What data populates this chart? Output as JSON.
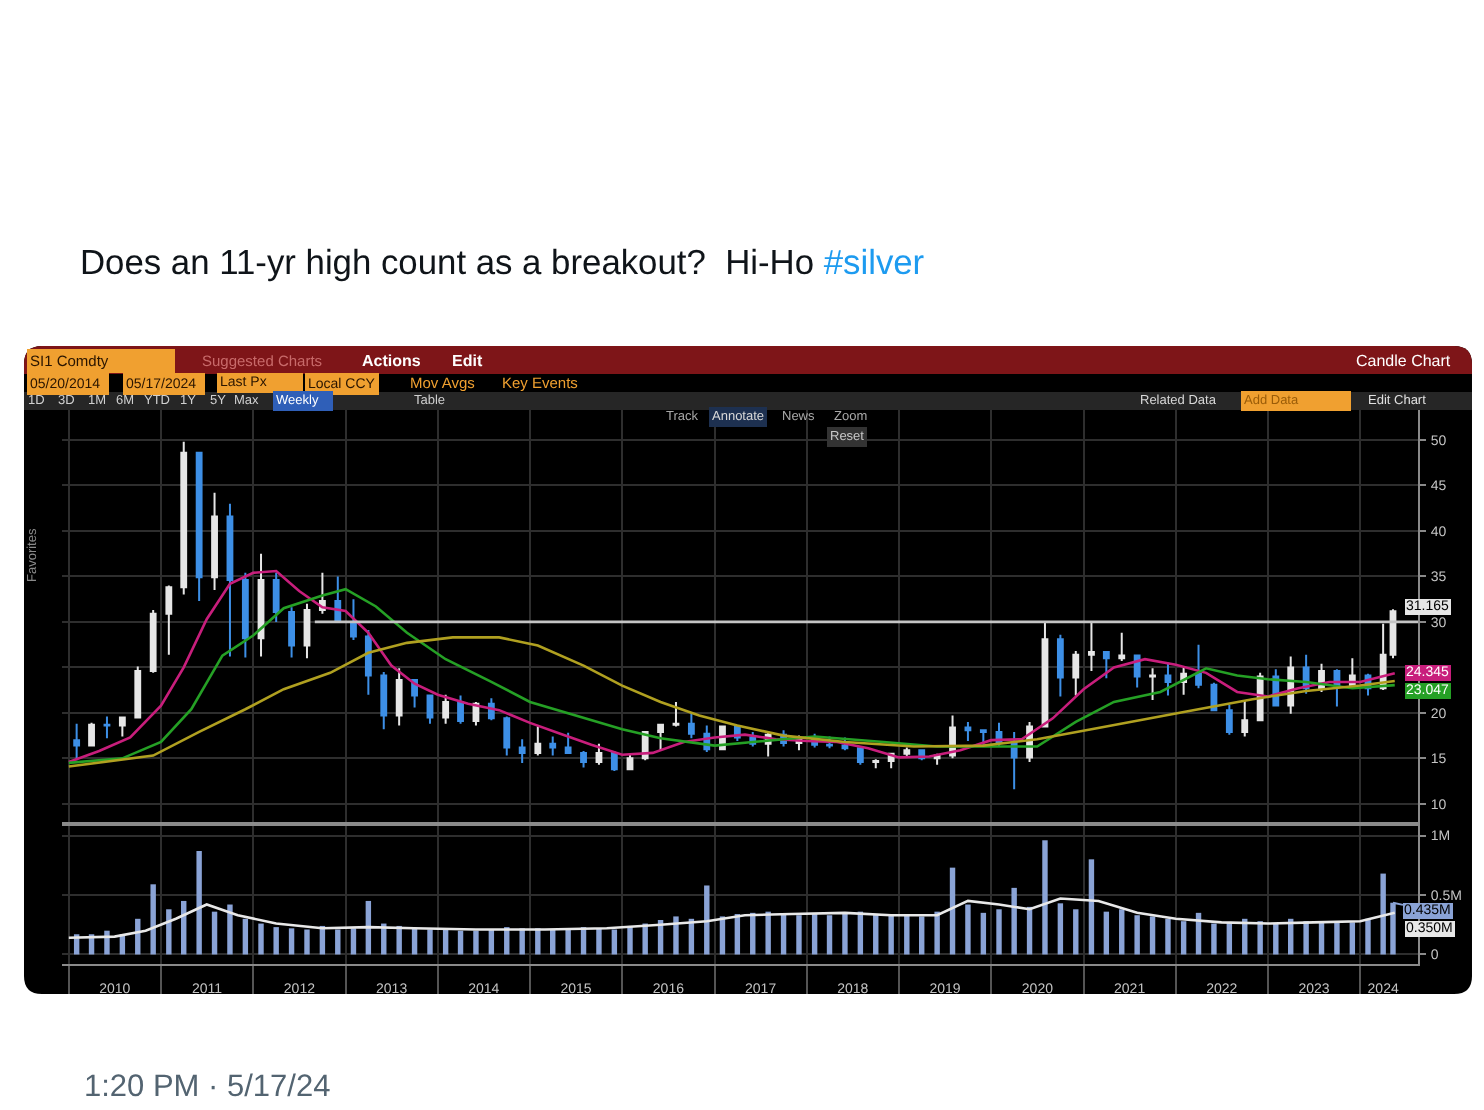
{
  "chart_data": [
    {
      "type": "candlestick",
      "title": "Does an 11-yr high count as a breakout?  Hi-Ho #silver",
      "annotations": [
        "SI1 Comdty",
        "Suggested Charts",
        "Actions",
        "Edit",
        "Candle Chart",
        "05/20/2014",
        "05/17/2024",
        "Last Px",
        "Local CCY",
        "Mov Avgs",
        "Key Events",
        "1D",
        "3D",
        "1M",
        "6M",
        "YTD",
        "1Y",
        "5Y",
        "Max",
        "Weekly",
        "Table",
        "Track",
        "Annotate",
        "News",
        "Zoom",
        "Reset",
        "Related Data",
        "Add Data",
        "Edit Chart",
        "Favorites"
      ],
      "x": [
        "2010-02",
        "2010-04",
        "2010-06",
        "2010-08",
        "2010-10",
        "2010-12",
        "2011-02",
        "2011-04",
        "2011-06",
        "2011-08",
        "2011-10",
        "2011-12",
        "2012-02",
        "2012-04",
        "2012-06",
        "2012-08",
        "2012-10",
        "2012-12",
        "2013-02",
        "2013-04",
        "2013-06",
        "2013-08",
        "2013-10",
        "2013-12",
        "2014-02",
        "2014-04",
        "2014-06",
        "2014-08",
        "2014-10",
        "2014-12",
        "2015-02",
        "2015-04",
        "2015-06",
        "2015-08",
        "2015-10",
        "2015-12",
        "2016-02",
        "2016-04",
        "2016-06",
        "2016-08",
        "2016-10",
        "2016-12",
        "2017-02",
        "2017-04",
        "2017-06",
        "2017-08",
        "2017-10",
        "2017-12",
        "2018-02",
        "2018-04",
        "2018-06",
        "2018-08",
        "2018-10",
        "2018-12",
        "2019-02",
        "2019-04",
        "2019-06",
        "2019-08",
        "2019-10",
        "2019-12",
        "2020-02",
        "2020-04",
        "2020-06",
        "2020-08",
        "2020-10",
        "2020-12",
        "2021-02",
        "2021-04",
        "2021-06",
        "2021-08",
        "2021-10",
        "2021-12",
        "2022-02",
        "2022-04",
        "2022-06",
        "2022-08",
        "2022-10",
        "2022-12",
        "2023-02",
        "2023-04",
        "2023-06",
        "2023-08",
        "2023-10",
        "2023-12",
        "2024-02",
        "2024-04",
        "2024-05-10"
      ],
      "series": [
        {
          "ohlc": [
            [
              17.0,
              18.8,
              14.8,
              16.4
            ],
            [
              16.4,
              18.9,
              16.3,
              18.7
            ],
            [
              18.7,
              19.6,
              17.2,
              18.6
            ],
            [
              18.6,
              19.5,
              17.4,
              19.5
            ],
            [
              19.5,
              25.1,
              19.4,
              24.6
            ],
            [
              24.6,
              31.3,
              24.4,
              30.9
            ],
            [
              30.9,
              34.0,
              26.4,
              33.8
            ],
            [
              33.8,
              49.8,
              33.0,
              48.6
            ],
            [
              48.6,
              48.7,
              32.3,
              34.9
            ],
            [
              34.9,
              44.2,
              33.5,
              41.6
            ],
            [
              41.6,
              43.0,
              26.2,
              34.6
            ],
            [
              34.6,
              35.4,
              26.1,
              28.2
            ],
            [
              28.2,
              37.5,
              26.2,
              34.6
            ],
            [
              34.6,
              35.4,
              30.0,
              31.1
            ],
            [
              31.1,
              31.6,
              26.1,
              27.4
            ],
            [
              27.4,
              32.0,
              26.0,
              31.3
            ],
            [
              31.3,
              35.4,
              30.9,
              32.3
            ],
            [
              32.3,
              35.0,
              29.9,
              30.0
            ],
            [
              30.0,
              32.5,
              28.0,
              28.4
            ],
            [
              28.4,
              29.1,
              22.0,
              24.1
            ],
            [
              24.1,
              24.5,
              18.2,
              19.7
            ],
            [
              19.7,
              24.9,
              18.6,
              23.6
            ],
            [
              23.6,
              23.7,
              20.6,
              21.9
            ],
            [
              21.9,
              22.0,
              18.8,
              19.5
            ],
            [
              19.5,
              22.0,
              18.8,
              21.2
            ],
            [
              21.2,
              21.9,
              18.8,
              19.1
            ],
            [
              19.1,
              21.2,
              18.6,
              21.0
            ],
            [
              21.0,
              21.6,
              19.2,
              19.4
            ],
            [
              19.4,
              19.6,
              15.3,
              16.2
            ],
            [
              16.2,
              17.1,
              14.5,
              15.6
            ],
            [
              15.6,
              18.5,
              15.3,
              16.6
            ],
            [
              16.6,
              17.4,
              15.3,
              16.2
            ],
            [
              16.2,
              17.8,
              15.6,
              15.6
            ],
            [
              15.6,
              15.8,
              14.0,
              14.6
            ],
            [
              14.6,
              16.6,
              14.3,
              15.6
            ],
            [
              15.6,
              15.8,
              13.6,
              13.8
            ],
            [
              13.8,
              15.5,
              13.7,
              15.0
            ],
            [
              15.0,
              17.9,
              14.8,
              17.9
            ],
            [
              17.9,
              18.8,
              15.8,
              18.7
            ],
            [
              18.7,
              21.2,
              18.5,
              18.8
            ],
            [
              18.8,
              20.0,
              17.2,
              17.7
            ],
            [
              17.7,
              18.6,
              15.7,
              16.0
            ],
            [
              16.0,
              18.6,
              15.9,
              18.5
            ],
            [
              18.5,
              18.6,
              16.9,
              17.3
            ],
            [
              17.3,
              17.9,
              16.3,
              16.6
            ],
            [
              16.6,
              18.0,
              15.2,
              17.6
            ],
            [
              17.6,
              18.1,
              16.3,
              16.7
            ],
            [
              16.7,
              17.5,
              15.9,
              17.1
            ],
            [
              17.1,
              17.7,
              16.2,
              16.5
            ],
            [
              16.5,
              17.4,
              16.1,
              16.4
            ],
            [
              16.4,
              17.3,
              15.9,
              16.1
            ],
            [
              16.1,
              16.1,
              14.3,
              14.6
            ],
            [
              14.6,
              14.9,
              13.9,
              14.7
            ],
            [
              14.7,
              15.6,
              13.9,
              15.5
            ],
            [
              15.5,
              16.2,
              15.2,
              15.9
            ],
            [
              15.9,
              15.9,
              14.8,
              15.0
            ],
            [
              15.0,
              15.5,
              14.3,
              15.3
            ],
            [
              15.3,
              19.7,
              15.0,
              18.4
            ],
            [
              18.4,
              19.0,
              16.9,
              18.1
            ],
            [
              18.1,
              18.1,
              16.5,
              17.9
            ],
            [
              17.9,
              18.9,
              16.3,
              16.7
            ],
            [
              16.7,
              17.9,
              11.6,
              15.1
            ],
            [
              15.1,
              19.0,
              14.6,
              18.5
            ],
            [
              18.5,
              29.9,
              18.5,
              28.1
            ],
            [
              28.1,
              28.6,
              21.8,
              23.9
            ],
            [
              23.9,
              26.8,
              21.9,
              26.4
            ],
            [
              26.4,
              30.1,
              24.6,
              26.7
            ],
            [
              26.7,
              26.8,
              23.8,
              26.0
            ],
            [
              26.0,
              28.8,
              25.7,
              26.3
            ],
            [
              26.3,
              26.4,
              22.8,
              24.0
            ],
            [
              24.0,
              24.9,
              21.4,
              24.1
            ],
            [
              24.1,
              25.5,
              21.9,
              23.4
            ],
            [
              23.4,
              25.0,
              22.0,
              24.3
            ],
            [
              24.3,
              27.5,
              22.7,
              23.1
            ],
            [
              23.1,
              23.3,
              20.2,
              20.3
            ],
            [
              20.3,
              20.9,
              17.6,
              17.9
            ],
            [
              17.9,
              21.4,
              17.4,
              19.2
            ],
            [
              19.2,
              24.4,
              19.2,
              24.0
            ],
            [
              24.0,
              24.8,
              20.7,
              20.8
            ],
            [
              20.8,
              26.2,
              19.9,
              25.0
            ],
            [
              25.0,
              26.4,
              22.1,
              22.7
            ],
            [
              22.7,
              25.4,
              22.3,
              24.6
            ],
            [
              24.6,
              24.8,
              20.7,
              22.9
            ],
            [
              22.9,
              26.0,
              22.7,
              24.1
            ],
            [
              24.1,
              24.3,
              21.9,
              22.7
            ],
            [
              22.7,
              29.8,
              22.5,
              26.4
            ],
            [
              26.4,
              31.4,
              26.0,
              31.165
            ]
          ],
          "colors": [
            "#3d8fe6",
            "#e6e6e6",
            "#3d8fe6",
            "#e6e6e6",
            "#e6e6e6",
            "#e6e6e6",
            "#e6e6e6",
            "#e6e6e6",
            "#3d8fe6",
            "#e6e6e6",
            "#3d8fe6",
            "#3d8fe6",
            "#e6e6e6",
            "#3d8fe6",
            "#3d8fe6",
            "#e6e6e6",
            "#e6e6e6",
            "#3d8fe6",
            "#3d8fe6",
            "#3d8fe6",
            "#3d8fe6",
            "#e6e6e6",
            "#3d8fe6",
            "#3d8fe6",
            "#e6e6e6",
            "#3d8fe6",
            "#e6e6e6",
            "#3d8fe6",
            "#3d8fe6",
            "#3d8fe6",
            "#e6e6e6",
            "#3d8fe6",
            "#3d8fe6",
            "#3d8fe6",
            "#e6e6e6",
            "#3d8fe6",
            "#e6e6e6",
            "#e6e6e6",
            "#e6e6e6",
            "#e6e6e6",
            "#3d8fe6",
            "#3d8fe6",
            "#e6e6e6",
            "#3d8fe6",
            "#3d8fe6",
            "#e6e6e6",
            "#3d8fe6",
            "#e6e6e6",
            "#3d8fe6",
            "#3d8fe6",
            "#3d8fe6",
            "#3d8fe6",
            "#e6e6e6",
            "#e6e6e6",
            "#e6e6e6",
            "#3d8fe6",
            "#e6e6e6",
            "#e6e6e6",
            "#3d8fe6",
            "#3d8fe6",
            "#3d8fe6",
            "#3d8fe6",
            "#e6e6e6",
            "#e6e6e6",
            "#3d8fe6",
            "#e6e6e6",
            "#e6e6e6",
            "#3d8fe6",
            "#e6e6e6",
            "#3d8fe6",
            "#e6e6e6",
            "#3d8fe6",
            "#e6e6e6",
            "#3d8fe6",
            "#3d8fe6",
            "#3d8fe6",
            "#e6e6e6",
            "#e6e6e6",
            "#3d8fe6",
            "#e6e6e6",
            "#3d8fe6",
            "#e6e6e6",
            "#3d8fe6",
            "#e6e6e6",
            "#3d8fe6",
            "#e6e6e6",
            "#e6e6e6"
          ],
          "value_labels": [
            null,
            null,
            null,
            null,
            null,
            null,
            null,
            null,
            null,
            null,
            null,
            null,
            null,
            null,
            null,
            null,
            null,
            null,
            null,
            null,
            null,
            null,
            null,
            null,
            null,
            null,
            null,
            null,
            null,
            null,
            null,
            null,
            null,
            null,
            null,
            null,
            null,
            null,
            null,
            null,
            null,
            null,
            null,
            null,
            null,
            null,
            null,
            null,
            null,
            null,
            null,
            null,
            null,
            null,
            null,
            null,
            null,
            null,
            null,
            null,
            null,
            null,
            null,
            null,
            null,
            null,
            null,
            null,
            null,
            null,
            null,
            null,
            null,
            null,
            null,
            null,
            null,
            null,
            null,
            null,
            null,
            null,
            null,
            null,
            null,
            null,
            "31.165"
          ]
        },
        {
          "type": "line",
          "color": "#c81e7c",
          "x": [
            "2010-01",
            "2010-05",
            "2010-09",
            "2011-01",
            "2011-04",
            "2011-07",
            "2011-10",
            "2012-01",
            "2012-04",
            "2012-07",
            "2012-10",
            "2013-01",
            "2013-04",
            "2013-07",
            "2013-10",
            "2014-01",
            "2014-05",
            "2014-09",
            "2015-01",
            "2015-05",
            "2015-09",
            "2016-01",
            "2016-05",
            "2016-09",
            "2017-01",
            "2017-05",
            "2017-09",
            "2018-01",
            "2018-05",
            "2018-09",
            "2019-01",
            "2019-05",
            "2019-09",
            "2020-01",
            "2020-05",
            "2020-09",
            "2021-01",
            "2021-05",
            "2021-09",
            "2022-01",
            "2022-05",
            "2022-09",
            "2023-01",
            "2023-05",
            "2023-09",
            "2024-01",
            "2024-05-17"
          ],
          "values": [
            14.6,
            15.8,
            17.3,
            20.8,
            25.0,
            30.3,
            34.2,
            35.4,
            35.6,
            33.4,
            31.6,
            31.2,
            28.8,
            25.2,
            23.2,
            22.0,
            21.0,
            20.3,
            18.9,
            17.7,
            16.5,
            15.4,
            15.6,
            16.8,
            17.3,
            17.6,
            17.1,
            16.9,
            16.8,
            16.1,
            15.1,
            15.2,
            15.9,
            17.0,
            17.1,
            19.4,
            22.6,
            25.0,
            25.9,
            25.3,
            24.4,
            22.3,
            21.8,
            22.7,
            23.4,
            23.4,
            24.345
          ],
          "value_labels": [
            null,
            null,
            null,
            null,
            null,
            null,
            null,
            null,
            null,
            null,
            null,
            null,
            null,
            null,
            null,
            null,
            null,
            null,
            null,
            null,
            null,
            null,
            null,
            null,
            null,
            null,
            null,
            null,
            null,
            null,
            null,
            null,
            null,
            null,
            null,
            null,
            null,
            null,
            null,
            null,
            null,
            null,
            null,
            null,
            null,
            null,
            "24.345"
          ]
        },
        {
          "type": "line",
          "color": "#25a025",
          "x": [
            "2010-01",
            "2010-08",
            "2011-01",
            "2011-05",
            "2011-09",
            "2012-01",
            "2012-05",
            "2012-10",
            "2013-01",
            "2013-05",
            "2013-09",
            "2014-02",
            "2014-08",
            "2015-01",
            "2015-07",
            "2016-01",
            "2016-06",
            "2017-01",
            "2017-06",
            "2018-02",
            "2018-11",
            "2019-06",
            "2020-01",
            "2020-07",
            "2020-12",
            "2021-05",
            "2021-11",
            "2022-05",
            "2022-09",
            "2023-01",
            "2023-06",
            "2023-12",
            "2024-05-17"
          ],
          "values": [
            14.5,
            15.0,
            16.8,
            20.4,
            26.3,
            28.5,
            31.5,
            32.9,
            33.6,
            31.7,
            28.8,
            25.9,
            23.4,
            21.2,
            19.7,
            18.2,
            17.2,
            16.4,
            16.8,
            17.4,
            16.8,
            16.3,
            16.3,
            16.3,
            19.0,
            21.2,
            22.3,
            24.9,
            24.1,
            23.7,
            23.4,
            22.7,
            23.047
          ],
          "value_labels": [
            null,
            null,
            null,
            null,
            null,
            null,
            null,
            null,
            null,
            null,
            null,
            null,
            null,
            null,
            null,
            null,
            null,
            null,
            null,
            null,
            null,
            null,
            null,
            null,
            null,
            null,
            null,
            null,
            null,
            null,
            null,
            null,
            "23.047"
          ]
        },
        {
          "type": "line",
          "color": "#b0a020",
          "x": [
            "2010-01",
            "2010-12",
            "2011-06",
            "2011-12",
            "2012-05",
            "2012-11",
            "2013-04",
            "2013-09",
            "2014-03",
            "2014-09",
            "2015-02",
            "2015-08",
            "2016-01",
            "2016-06",
            "2016-11",
            "2017-04",
            "2017-10",
            "2018-06",
            "2019-03",
            "2019-12",
            "2020-07",
            "2021-02",
            "2021-09",
            "2022-04",
            "2022-11",
            "2023-06",
            "2024-01",
            "2024-05-17"
          ],
          "values": [
            14.1,
            15.3,
            17.9,
            20.4,
            22.6,
            24.4,
            26.6,
            27.7,
            28.3,
            28.3,
            27.4,
            25.2,
            23.0,
            21.2,
            19.7,
            18.6,
            17.5,
            16.8,
            16.3,
            16.4,
            17.1,
            18.2,
            19.3,
            20.4,
            21.5,
            22.4,
            23.0,
            23.5
          ]
        },
        {
          "type": "line",
          "color": "#c4c4c4",
          "x": [
            "2012-09",
            "2024-08-17"
          ],
          "values": [
            30,
            30
          ]
        }
      ],
      "xlim": [
        "2009-12-05",
        "2024-08-17"
      ],
      "xticks": [
        {
          "value": "2010-01-01",
          "label": null
        },
        {
          "value": "2011-01-01",
          "label": null
        },
        {
          "value": "2012-01-01",
          "label": null
        },
        {
          "value": "2013-01-01",
          "label": null
        },
        {
          "value": "2014-01-01",
          "label": null
        },
        {
          "value": "2015-01-01",
          "label": null
        },
        {
          "value": "2016-01-01",
          "label": null
        },
        {
          "value": "2017-01-01",
          "label": null
        },
        {
          "value": "2018-01-01",
          "label": null
        },
        {
          "value": "2019-01-01",
          "label": null
        },
        {
          "value": "2020-01-01",
          "label": null
        },
        {
          "value": "2021-01-01",
          "label": null
        },
        {
          "value": "2022-01-01",
          "label": null
        },
        {
          "value": "2023-01-01",
          "label": null
        },
        {
          "value": "2024-01-01",
          "label": null
        }
      ],
      "ylim": [
        8,
        53.3
      ],
      "yticks": [
        10,
        15,
        20,
        {
          "value": 25,
          "label": null
        },
        30,
        35,
        40,
        45,
        50
      ],
      "tick_labels": "y",
      "grid": true
    },
    {
      "type": "bar",
      "annotations": [
        "1:20 PM · 5/17/24"
      ],
      "x": [
        "2010-02",
        "2010-04",
        "2010-06",
        "2010-08",
        "2010-10",
        "2010-12",
        "2011-02",
        "2011-04",
        "2011-06",
        "2011-08",
        "2011-10",
        "2011-12",
        "2012-02",
        "2012-04",
        "2012-06",
        "2012-08",
        "2012-10",
        "2012-12",
        "2013-02",
        "2013-04",
        "2013-06",
        "2013-08",
        "2013-10",
        "2013-12",
        "2014-02",
        "2014-04",
        "2014-06",
        "2014-08",
        "2014-10",
        "2014-12",
        "2015-02",
        "2015-04",
        "2015-06",
        "2015-08",
        "2015-10",
        "2015-12",
        "2016-02",
        "2016-04",
        "2016-06",
        "2016-08",
        "2016-10",
        "2016-12",
        "2017-02",
        "2017-04",
        "2017-06",
        "2017-08",
        "2017-10",
        "2017-12",
        "2018-02",
        "2018-04",
        "2018-06",
        "2018-08",
        "2018-10",
        "2018-12",
        "2019-02",
        "2019-04",
        "2019-06",
        "2019-08",
        "2019-10",
        "2019-12",
        "2020-02",
        "2020-04",
        "2020-06",
        "2020-08",
        "2020-10",
        "2020-12",
        "2021-02",
        "2021-04",
        "2021-06",
        "2021-08",
        "2021-10",
        "2021-12",
        "2022-02",
        "2022-04",
        "2022-06",
        "2022-08",
        "2022-10",
        "2022-12",
        "2023-02",
        "2023-04",
        "2023-06",
        "2023-08",
        "2023-10",
        "2023-12",
        "2024-02",
        "2024-04",
        "2024-05-10"
      ],
      "series": [
        {
          "color": "#8aa3d6",
          "values": [
            170000,
            170000,
            200000,
            170000,
            300000,
            590000,
            380000,
            450000,
            870000,
            360000,
            420000,
            300000,
            260000,
            230000,
            220000,
            210000,
            240000,
            210000,
            220000,
            450000,
            260000,
            240000,
            220000,
            210000,
            210000,
            200000,
            200000,
            210000,
            230000,
            220000,
            220000,
            210000,
            220000,
            230000,
            220000,
            210000,
            240000,
            260000,
            290000,
            320000,
            300000,
            580000,
            320000,
            340000,
            350000,
            360000,
            340000,
            330000,
            340000,
            330000,
            340000,
            360000,
            340000,
            330000,
            330000,
            320000,
            360000,
            730000,
            420000,
            350000,
            380000,
            560000,
            400000,
            960000,
            430000,
            380000,
            800000,
            360000,
            380000,
            330000,
            320000,
            300000,
            280000,
            350000,
            260000,
            270000,
            300000,
            280000,
            260000,
            300000,
            280000,
            270000,
            280000,
            270000,
            300000,
            680000,
            435000
          ],
          "value_labels": [
            null,
            null,
            null,
            null,
            null,
            null,
            null,
            null,
            null,
            null,
            null,
            null,
            null,
            null,
            null,
            null,
            null,
            null,
            null,
            null,
            null,
            null,
            null,
            null,
            null,
            null,
            null,
            null,
            null,
            null,
            null,
            null,
            null,
            null,
            null,
            null,
            null,
            null,
            null,
            null,
            null,
            null,
            null,
            null,
            null,
            null,
            null,
            null,
            null,
            null,
            null,
            null,
            null,
            null,
            null,
            null,
            null,
            null,
            null,
            null,
            null,
            null,
            null,
            null,
            null,
            null,
            null,
            null,
            null,
            null,
            null,
            null,
            null,
            null,
            null,
            null,
            null,
            null,
            null,
            null,
            null,
            null,
            null,
            null,
            null,
            null,
            "0.435M"
          ]
        },
        {
          "type": "line",
          "color": "#e8e8e8",
          "x": [
            "2010-01",
            "2010-07",
            "2010-11",
            "2011-03",
            "2011-07",
            "2011-11",
            "2012-04",
            "2012-10",
            "2013-04",
            "2013-10",
            "2014-06",
            "2015-03",
            "2015-11",
            "2016-06",
            "2016-12",
            "2017-05",
            "2017-11",
            "2018-06",
            "2018-12",
            "2019-06",
            "2019-10",
            "2020-02",
            "2020-06",
            "2020-10",
            "2021-03",
            "2021-08",
            "2022-01",
            "2022-07",
            "2023-01",
            "2023-07",
            "2024-01",
            "2024-05-17"
          ],
          "values": [
            140000,
            150000,
            200000,
            300000,
            420000,
            330000,
            260000,
            220000,
            230000,
            220000,
            210000,
            210000,
            220000,
            250000,
            280000,
            330000,
            340000,
            350000,
            330000,
            330000,
            450000,
            420000,
            380000,
            470000,
            450000,
            350000,
            300000,
            270000,
            260000,
            270000,
            280000,
            350000
          ],
          "value_labels": [
            null,
            null,
            null,
            null,
            null,
            null,
            null,
            null,
            null,
            null,
            null,
            null,
            null,
            null,
            null,
            null,
            null,
            null,
            null,
            null,
            null,
            null,
            null,
            null,
            null,
            null,
            null,
            null,
            null,
            null,
            null,
            "0.350M"
          ]
        }
      ],
      "xlim": [
        "2009-12-05",
        "2024-08-17"
      ],
      "xticks": [
        {
          "value": "2010-01-01",
          "label": null
        },
        {
          "value": "2011-01-01",
          "label": null
        },
        {
          "value": "2012-01-01",
          "label": null
        },
        {
          "value": "2013-01-01",
          "label": null
        },
        {
          "value": "2014-01-01",
          "label": null
        },
        {
          "value": "2015-01-01",
          "label": null
        },
        {
          "value": "2016-01-01",
          "label": null
        },
        {
          "value": "2017-01-01",
          "label": null
        },
        {
          "value": "2018-01-01",
          "label": null
        },
        {
          "value": "2019-01-01",
          "label": null
        },
        {
          "value": "2020-01-01",
          "label": null
        },
        {
          "value": "2021-01-01",
          "label": null
        },
        {
          "value": "2022-01-01",
          "label": null
        },
        {
          "value": "2023-01-01",
          "label": null
        },
        {
          "value": "2024-01-01",
          "label": null
        },
        {
          "value": "2010-07-02",
          "label": "2010"
        },
        {
          "value": "2011-07-02",
          "label": "2011"
        },
        {
          "value": "2012-07-02",
          "label": "2012"
        },
        {
          "value": "2013-07-02",
          "label": "2013"
        },
        {
          "value": "2014-07-02",
          "label": "2014"
        },
        {
          "value": "2015-07-02",
          "label": "2015"
        },
        {
          "value": "2016-07-02",
          "label": "2016"
        },
        {
          "value": "2017-07-02",
          "label": "2017"
        },
        {
          "value": "2018-07-02",
          "label": "2018"
        },
        {
          "value": "2019-07-02",
          "label": "2019"
        },
        {
          "value": "2020-07-02",
          "label": "2020"
        },
        {
          "value": "2021-07-02",
          "label": "2021"
        },
        {
          "value": "2022-07-02",
          "label": "2022"
        },
        {
          "value": "2023-07-02",
          "label": "2023"
        },
        {
          "value": "2024-04-01",
          "label": "2024"
        }
      ],
      "ylim": [
        -80000,
        1080000
      ],
      "yticks": [
        0,
        {
          "value": 500000,
          "label": "0.5M"
        },
        {
          "value": 1000000,
          "label": "1M"
        }
      ],
      "grid": true
    }
  ]
}
